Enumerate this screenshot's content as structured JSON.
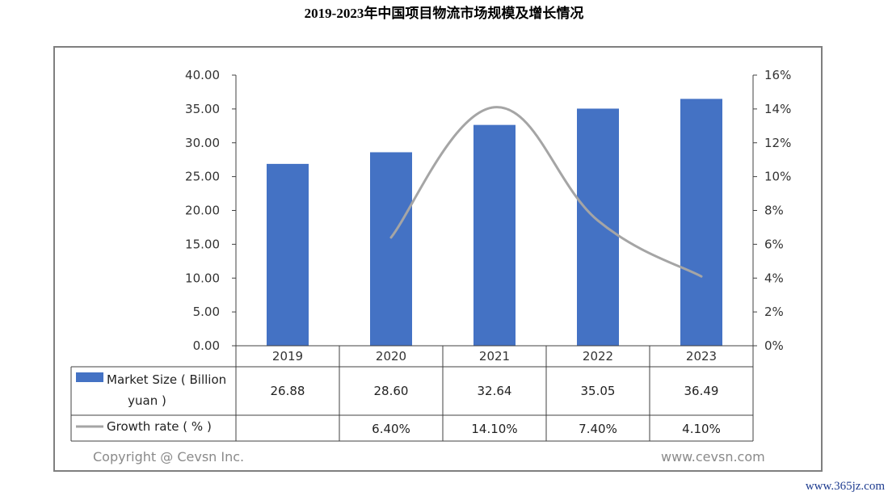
{
  "title": "2019-2023年中国项目物流市场规模及增长情况",
  "footer": {
    "copyright": "Copyright @ Cevsn Inc.",
    "website": "www.cevsn.com"
  },
  "watermark": "www.365jz.com",
  "colors": {
    "bar": "#4472c4",
    "line": "#a5a5a5",
    "axis": "#404040"
  },
  "chart_data": {
    "type": "bar",
    "title": "2019-2023年中国项目物流市场规模及增长情况",
    "categories": [
      "2019",
      "2020",
      "2021",
      "2022",
      "2023"
    ],
    "series": [
      {
        "name": "Market Size ( Billion yuan )",
        "type": "bar",
        "axis": "left",
        "values": [
          26.88,
          28.6,
          32.64,
          35.05,
          36.49
        ]
      },
      {
        "name": "Growth rate ( % )",
        "type": "line",
        "axis": "right",
        "values": [
          null,
          6.4,
          14.1,
          7.4,
          4.1
        ]
      }
    ],
    "table": {
      "rows": [
        {
          "label_line1": "Market Size ( Billion",
          "label_line2": "yuan )",
          "cells": [
            "26.88",
            "28.60",
            "32.64",
            "35.05",
            "36.49"
          ]
        },
        {
          "label_line1": "Growth rate ( % )",
          "cells": [
            "",
            "6.40%",
            "14.10%",
            "7.40%",
            "4.10%"
          ]
        }
      ]
    },
    "ylim_left": [
      0,
      40
    ],
    "yticks_left": [
      "40.00",
      "35.00",
      "30.00",
      "25.00",
      "20.00",
      "15.00",
      "10.00",
      "5.00",
      "0.00"
    ],
    "ylim_right": [
      0,
      16
    ],
    "yticks_right": [
      "16%",
      "14%",
      "12%",
      "10%",
      "8%",
      "6%",
      "4%",
      "2%",
      "0%"
    ],
    "grid": false,
    "legend_placement": "data-table"
  }
}
